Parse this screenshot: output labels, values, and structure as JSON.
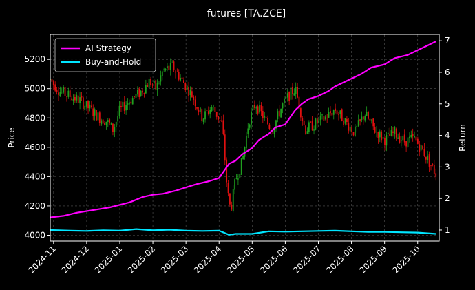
{
  "chart_data": {
    "type": "line",
    "title": "futures [TA.ZCE]",
    "ylabel_left": "Price",
    "ylabel_right": "Return",
    "x_tick_labels": [
      "2024-11",
      "2024-12",
      "2025-01",
      "2025-02",
      "2025-03",
      "2025-04",
      "2025-05",
      "2025-06",
      "2025-07",
      "2025-08",
      "2025-09",
      "2025-10"
    ],
    "x_range_months": [
      -0.1,
      11.65
    ],
    "y_left_ticks": [
      "4000",
      "4200",
      "4400",
      "4600",
      "4800",
      "5000",
      "5200"
    ],
    "y_left_range": [
      3960,
      5370
    ],
    "y_right_ticks": [
      "1",
      "2",
      "3",
      "4",
      "5",
      "6",
      "7"
    ],
    "y_right_range": [
      0.65,
      7.2
    ],
    "grid": true,
    "legend_position": "top-left",
    "colors": {
      "background": "#000000",
      "ai_strategy": "#ff00ff",
      "buy_and_hold": "#00e5ff",
      "candle_up": "#1fa01f",
      "candle_down": "#e01010",
      "grid": "#555555"
    },
    "series": [
      {
        "name": "AI Strategy",
        "axis": "right",
        "x": [
          -0.1,
          0.3,
          0.7,
          1.0,
          1.3,
          1.7,
          2.0,
          2.3,
          2.7,
          3.0,
          3.3,
          3.7,
          4.0,
          4.3,
          4.7,
          5.0,
          5.3,
          5.5,
          5.7,
          6.0,
          6.2,
          6.5,
          6.7,
          7.0,
          7.3,
          7.5,
          7.7,
          8.0,
          8.3,
          8.5,
          8.7,
          9.0,
          9.3,
          9.6,
          10.0,
          10.3,
          10.7,
          11.0,
          11.3,
          11.55
        ],
        "values": [
          1.4,
          1.45,
          1.55,
          1.6,
          1.65,
          1.72,
          1.8,
          1.88,
          2.05,
          2.12,
          2.15,
          2.25,
          2.35,
          2.45,
          2.55,
          2.65,
          3.1,
          3.2,
          3.4,
          3.6,
          3.85,
          4.05,
          4.25,
          4.35,
          4.8,
          5.0,
          5.15,
          5.25,
          5.4,
          5.55,
          5.65,
          5.8,
          5.95,
          6.15,
          6.25,
          6.45,
          6.55,
          6.7,
          6.85,
          6.98
        ]
      },
      {
        "name": "Buy-and-Hold",
        "axis": "right",
        "x": [
          -0.1,
          0.5,
          1.0,
          1.5,
          2.0,
          2.5,
          3.0,
          3.5,
          4.0,
          4.5,
          5.0,
          5.3,
          5.5,
          6.0,
          6.5,
          7.0,
          7.5,
          8.0,
          8.5,
          9.0,
          9.5,
          10.0,
          10.5,
          11.0,
          11.55
        ],
        "values": [
          1.0,
          0.98,
          0.97,
          0.99,
          0.98,
          1.03,
          0.99,
          1.01,
          0.98,
          0.97,
          0.98,
          0.85,
          0.88,
          0.88,
          0.96,
          0.95,
          0.96,
          0.97,
          0.98,
          0.96,
          0.94,
          0.94,
          0.93,
          0.92,
          0.88
        ]
      }
    ],
    "price_anchors": {
      "x": [
        -0.1,
        0.2,
        0.5,
        0.8,
        1.1,
        1.4,
        1.6,
        1.8,
        2.0,
        2.3,
        2.6,
        2.9,
        3.1,
        3.3,
        3.6,
        3.9,
        4.2,
        4.5,
        4.8,
        5.1,
        5.25,
        5.35,
        5.5,
        5.7,
        5.9,
        6.1,
        6.3,
        6.6,
        6.9,
        7.1,
        7.3,
        7.6,
        7.9,
        8.2,
        8.5,
        8.8,
        9.1,
        9.4,
        9.7,
        10.0,
        10.3,
        10.6,
        10.9,
        11.2,
        11.55
      ],
      "values": [
        5060,
        4980,
        4950,
        4920,
        4860,
        4800,
        4780,
        4720,
        4850,
        4920,
        4970,
        5050,
        5000,
        5120,
        5150,
        5050,
        4950,
        4800,
        4880,
        4750,
        4300,
        4170,
        4380,
        4500,
        4780,
        4900,
        4820,
        4720,
        4880,
        4950,
        5000,
        4720,
        4760,
        4800,
        4860,
        4780,
        4700,
        4830,
        4720,
        4650,
        4700,
        4640,
        4660,
        4560,
        4420
      ]
    }
  }
}
